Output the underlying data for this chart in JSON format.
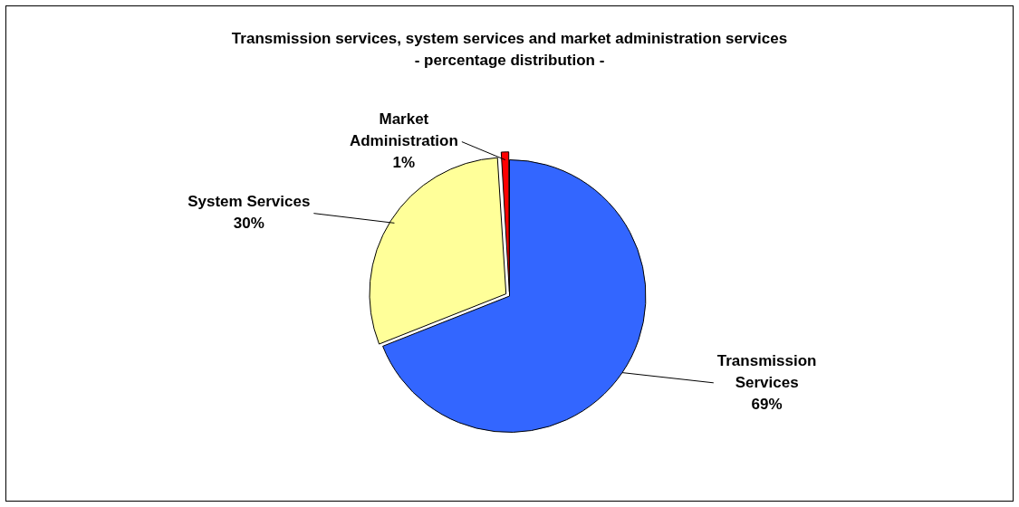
{
  "chart_data": {
    "type": "pie",
    "title": "Transmission services, system services and market administration services",
    "subtitle": "- percentage distribution -",
    "categories": [
      "Transmission Services",
      "System Services",
      "Market Administration"
    ],
    "values": [
      69,
      30,
      1
    ],
    "colors": [
      "#3366ff",
      "#ffff99",
      "#ff0000"
    ],
    "value_labels": [
      "69%",
      "30%",
      "1%"
    ],
    "legend": false
  }
}
